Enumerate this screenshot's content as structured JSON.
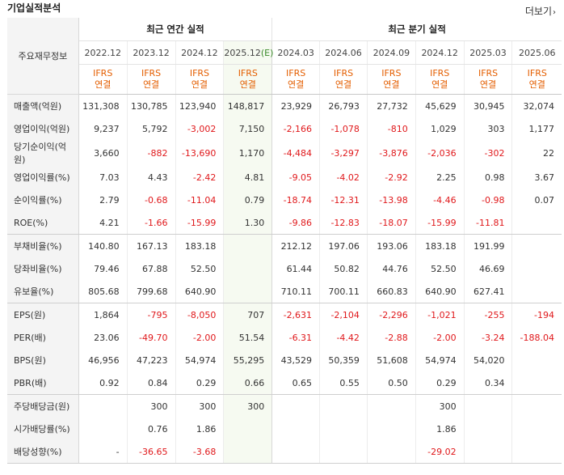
{
  "header": {
    "title": "기업실적분석",
    "more_label": "더보기"
  },
  "table": {
    "corner_label": "주요재무정보",
    "annual_group_label": "최근 연간 실적",
    "quarter_group_label": "최근 분기 실적",
    "periods": [
      "2022.12",
      "2023.12",
      "2024.12",
      "2025.12",
      "2024.03",
      "2024.06",
      "2024.09",
      "2024.12",
      "2025.03",
      "2025.06"
    ],
    "estimate_marker": "(E)",
    "ifrs_line1": "IFRS",
    "ifrs_line2": "연결",
    "rows": [
      {
        "label": "매출액(억원)",
        "values": [
          "131,308",
          "130,785",
          "123,940",
          "148,817",
          "23,929",
          "26,793",
          "27,732",
          "45,629",
          "30,945",
          "32,074"
        ]
      },
      {
        "label": "영업이익(억원)",
        "values": [
          "9,237",
          "5,792",
          "-3,002",
          "7,150",
          "-2,166",
          "-1,078",
          "-810",
          "1,029",
          "303",
          "1,177"
        ]
      },
      {
        "label": "당기순이익(억원)",
        "values": [
          "3,660",
          "-882",
          "-13,690",
          "1,170",
          "-4,484",
          "-3,297",
          "-3,876",
          "-2,036",
          "-302",
          "22"
        ]
      },
      {
        "label": "영업이익률(%)",
        "values": [
          "7.03",
          "4.43",
          "-2.42",
          "4.81",
          "-9.05",
          "-4.02",
          "-2.92",
          "2.25",
          "0.98",
          "3.67"
        ]
      },
      {
        "label": "순이익률(%)",
        "values": [
          "2.79",
          "-0.68",
          "-11.04",
          "0.79",
          "-18.74",
          "-12.31",
          "-13.98",
          "-4.46",
          "-0.98",
          "0.07"
        ]
      },
      {
        "label": "ROE(%)",
        "values": [
          "4.21",
          "-1.66",
          "-15.99",
          "1.30",
          "-9.86",
          "-12.83",
          "-18.07",
          "-15.99",
          "-11.81",
          ""
        ]
      },
      {
        "label": "부채비율(%)",
        "values": [
          "140.80",
          "167.13",
          "183.18",
          "",
          "212.12",
          "197.06",
          "193.06",
          "183.18",
          "191.99",
          ""
        ]
      },
      {
        "label": "당좌비율(%)",
        "values": [
          "79.46",
          "67.88",
          "52.50",
          "",
          "61.44",
          "50.82",
          "44.76",
          "52.50",
          "46.69",
          ""
        ]
      },
      {
        "label": "유보율(%)",
        "values": [
          "805.68",
          "799.68",
          "640.90",
          "",
          "710.11",
          "700.11",
          "660.83",
          "640.90",
          "627.41",
          ""
        ]
      },
      {
        "label": "EPS(원)",
        "values": [
          "1,864",
          "-795",
          "-8,050",
          "707",
          "-2,631",
          "-2,104",
          "-2,296",
          "-1,021",
          "-255",
          "-194"
        ]
      },
      {
        "label": "PER(배)",
        "values": [
          "23.06",
          "-49.70",
          "-2.00",
          "51.54",
          "-6.31",
          "-4.42",
          "-2.88",
          "-2.00",
          "-3.24",
          "-188.04"
        ]
      },
      {
        "label": "BPS(원)",
        "values": [
          "46,956",
          "47,223",
          "54,974",
          "55,295",
          "43,529",
          "50,359",
          "51,608",
          "54,974",
          "54,020",
          ""
        ]
      },
      {
        "label": "PBR(배)",
        "values": [
          "0.92",
          "0.84",
          "0.29",
          "0.66",
          "0.65",
          "0.55",
          "0.50",
          "0.29",
          "0.34",
          ""
        ]
      },
      {
        "label": "주당배당금(원)",
        "values": [
          "",
          "300",
          "300",
          "300",
          "",
          "",
          "",
          "300",
          "",
          ""
        ]
      },
      {
        "label": "시가배당률(%)",
        "values": [
          "",
          "0.76",
          "1.86",
          "",
          "",
          "",
          "",
          "1.86",
          "",
          ""
        ]
      },
      {
        "label": "배당성향(%)",
        "values": [
          "-",
          "-36.65",
          "-3.68",
          "",
          "",
          "",
          "",
          "-29.02",
          "",
          ""
        ]
      }
    ]
  }
}
